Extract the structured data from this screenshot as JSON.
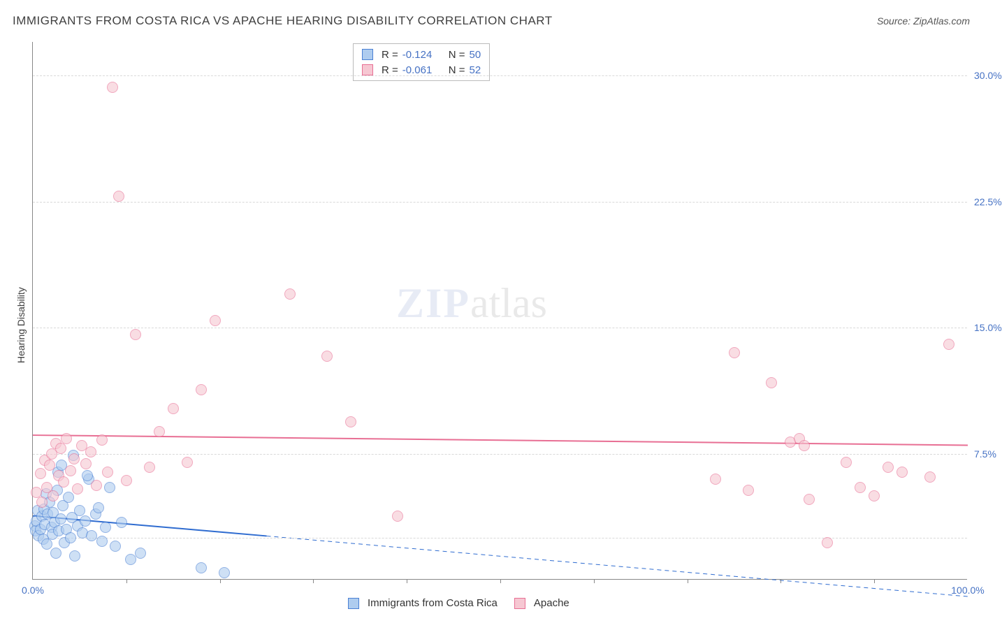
{
  "title": "IMMIGRANTS FROM COSTA RICA VS APACHE HEARING DISABILITY CORRELATION CHART",
  "source_label": "Source: ZipAtlas.com",
  "y_axis_label": "Hearing Disability",
  "watermark": {
    "part1": "ZIP",
    "part2": "atlas"
  },
  "chart": {
    "type": "scatter",
    "background_color": "#ffffff",
    "grid_color": "#d9d9d9",
    "axis_color": "#888888",
    "xlim": [
      0,
      100
    ],
    "ylim": [
      0,
      32
    ],
    "x_ticks": [
      {
        "pos": 0,
        "label": "0.0%"
      },
      {
        "pos": 100,
        "label": "100.0%"
      }
    ],
    "x_minor_ticks": [
      10,
      20,
      30,
      40,
      50,
      60,
      70,
      80,
      90
    ],
    "y_ticks": [
      {
        "pos": 7.5,
        "label": "7.5%"
      },
      {
        "pos": 15.0,
        "label": "15.0%"
      },
      {
        "pos": 22.5,
        "label": "22.5%"
      },
      {
        "pos": 30.0,
        "label": "30.0%"
      }
    ],
    "y_minor_grid": [
      2.5
    ],
    "marker_radius": 8,
    "marker_stroke_width": 1,
    "series": [
      {
        "id": "costa_rica",
        "label": "Immigrants from Costa Rica",
        "fill_color": "#aeccef",
        "stroke_color": "#4a80d4",
        "fill_opacity": 0.6,
        "R": "-0.124",
        "N": "50",
        "trend": {
          "y_at_x0": 3.8,
          "y_at_x100": -1.0,
          "color": "#2f6cd0",
          "width": 2,
          "dash_after_x": 25
        },
        "points": [
          [
            0.2,
            3.2
          ],
          [
            0.3,
            2.9
          ],
          [
            0.4,
            3.5
          ],
          [
            0.5,
            4.1
          ],
          [
            0.6,
            2.6
          ],
          [
            0.8,
            3.0
          ],
          [
            1.0,
            3.8
          ],
          [
            1.1,
            2.4
          ],
          [
            1.2,
            4.2
          ],
          [
            1.3,
            3.3
          ],
          [
            1.4,
            5.1
          ],
          [
            1.5,
            2.1
          ],
          [
            1.6,
            3.9
          ],
          [
            1.8,
            4.6
          ],
          [
            2.0,
            3.1
          ],
          [
            2.1,
            2.7
          ],
          [
            2.2,
            4.0
          ],
          [
            2.3,
            3.4
          ],
          [
            2.5,
            1.6
          ],
          [
            2.6,
            5.3
          ],
          [
            2.8,
            2.9
          ],
          [
            3.0,
            3.6
          ],
          [
            3.2,
            4.4
          ],
          [
            3.4,
            2.2
          ],
          [
            3.6,
            3.0
          ],
          [
            3.8,
            4.9
          ],
          [
            4.0,
            2.5
          ],
          [
            4.2,
            3.7
          ],
          [
            4.5,
            1.4
          ],
          [
            4.8,
            3.2
          ],
          [
            5.0,
            4.1
          ],
          [
            5.3,
            2.8
          ],
          [
            5.6,
            3.5
          ],
          [
            6.0,
            6.0
          ],
          [
            6.3,
            2.6
          ],
          [
            6.7,
            3.9
          ],
          [
            7.0,
            4.3
          ],
          [
            7.4,
            2.3
          ],
          [
            7.8,
            3.1
          ],
          [
            8.2,
            5.5
          ],
          [
            2.7,
            6.4
          ],
          [
            3.1,
            6.8
          ],
          [
            4.3,
            7.4
          ],
          [
            5.8,
            6.2
          ],
          [
            8.8,
            2.0
          ],
          [
            9.5,
            3.4
          ],
          [
            10.5,
            1.2
          ],
          [
            11.5,
            1.6
          ],
          [
            18.0,
            0.7
          ],
          [
            20.5,
            0.4
          ]
        ]
      },
      {
        "id": "apache",
        "label": "Apache",
        "fill_color": "#f6c7d2",
        "stroke_color": "#e86f94",
        "fill_opacity": 0.6,
        "R": "-0.061",
        "N": "52",
        "trend": {
          "y_at_x0": 8.6,
          "y_at_x100": 8.0,
          "color": "#e86f94",
          "width": 2,
          "dash_after_x": null
        },
        "points": [
          [
            0.4,
            5.2
          ],
          [
            0.8,
            6.3
          ],
          [
            1.0,
            4.6
          ],
          [
            1.3,
            7.1
          ],
          [
            1.5,
            5.5
          ],
          [
            1.8,
            6.8
          ],
          [
            2.0,
            7.5
          ],
          [
            2.2,
            5.0
          ],
          [
            2.5,
            8.1
          ],
          [
            2.8,
            6.2
          ],
          [
            3.0,
            7.8
          ],
          [
            3.3,
            5.8
          ],
          [
            3.6,
            8.4
          ],
          [
            4.0,
            6.5
          ],
          [
            4.4,
            7.2
          ],
          [
            4.8,
            5.4
          ],
          [
            5.2,
            8.0
          ],
          [
            5.7,
            6.9
          ],
          [
            6.2,
            7.6
          ],
          [
            6.8,
            5.6
          ],
          [
            7.4,
            8.3
          ],
          [
            8.0,
            6.4
          ],
          [
            8.5,
            29.3
          ],
          [
            9.2,
            22.8
          ],
          [
            10.0,
            5.9
          ],
          [
            11.0,
            14.6
          ],
          [
            12.5,
            6.7
          ],
          [
            13.5,
            8.8
          ],
          [
            15.0,
            10.2
          ],
          [
            16.5,
            7.0
          ],
          [
            18.0,
            11.3
          ],
          [
            19.5,
            15.4
          ],
          [
            27.5,
            17.0
          ],
          [
            31.5,
            13.3
          ],
          [
            34.0,
            9.4
          ],
          [
            39.0,
            3.8
          ],
          [
            73.0,
            6.0
          ],
          [
            75.0,
            13.5
          ],
          [
            76.5,
            5.3
          ],
          [
            79.0,
            11.7
          ],
          [
            81.0,
            8.2
          ],
          [
            82.0,
            8.4
          ],
          [
            82.5,
            8.0
          ],
          [
            85.0,
            2.2
          ],
          [
            87.0,
            7.0
          ],
          [
            88.5,
            5.5
          ],
          [
            90.0,
            5.0
          ],
          [
            91.5,
            6.7
          ],
          [
            93.0,
            6.4
          ],
          [
            96.0,
            6.1
          ],
          [
            98.0,
            14.0
          ],
          [
            83.0,
            4.8
          ]
        ]
      }
    ]
  },
  "stat_legend": {
    "r_label": "R =",
    "n_label": "N ="
  },
  "text_color": "#404040",
  "value_color": "#4672c4",
  "title_fontsize": 17,
  "tick_fontsize": 14,
  "legend_fontsize": 15
}
